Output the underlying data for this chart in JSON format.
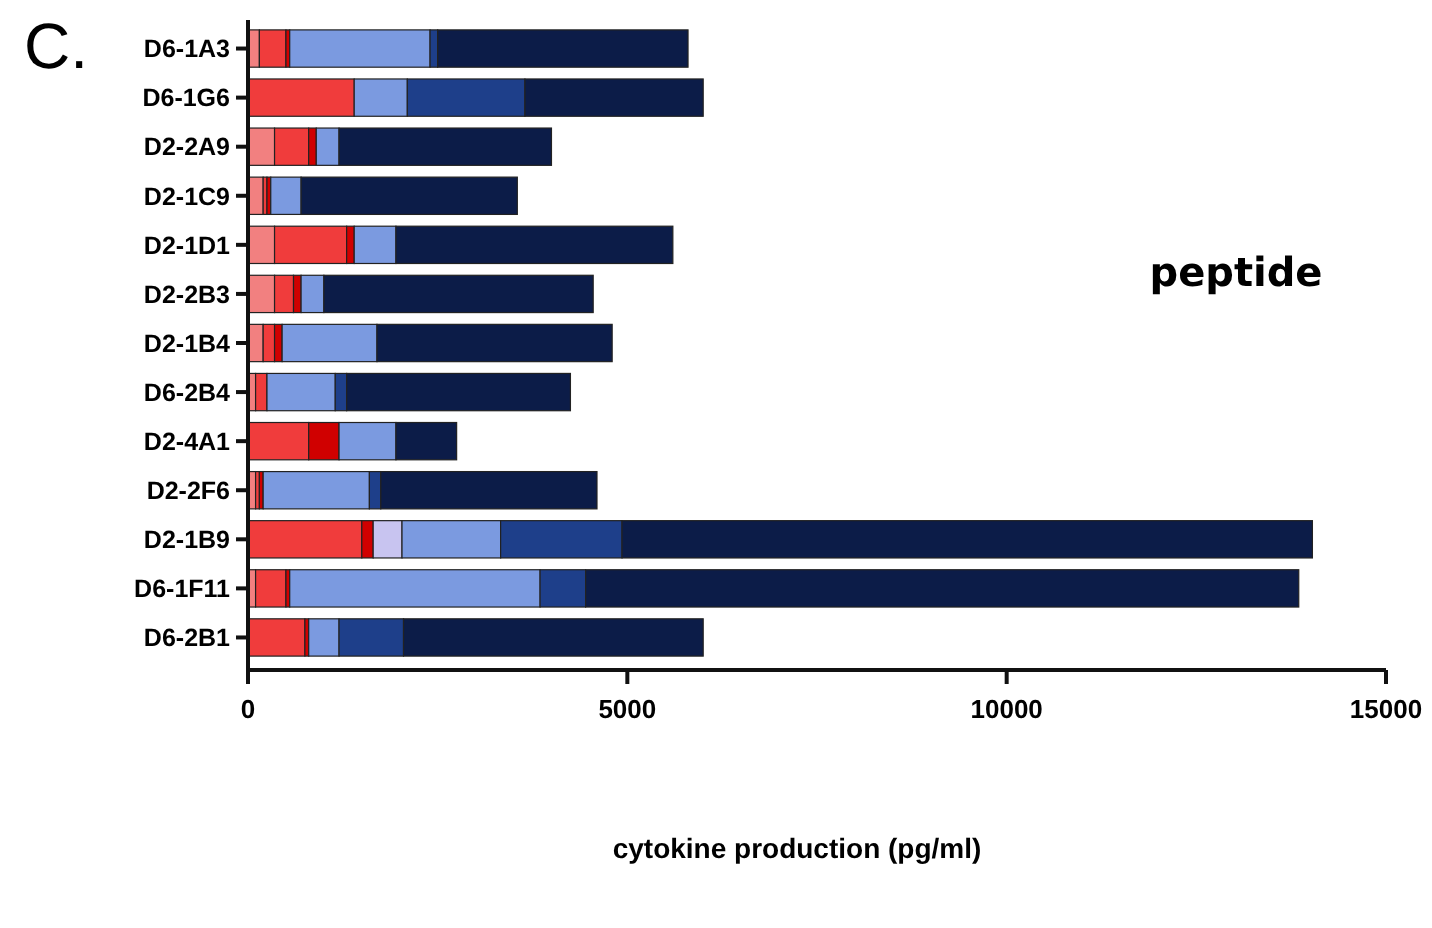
{
  "chart_data": {
    "type": "bar",
    "orientation": "horizontal",
    "stacked": true,
    "categories": [
      "D6-1A3",
      "D6-1G6",
      "D2-2A9",
      "D2-1C9",
      "D2-1D1",
      "D2-2B3",
      "D2-1B4",
      "D6-2B4",
      "D2-4A1",
      "D2-2F6",
      "D2-1B9",
      "D6-1F11",
      "D6-2B1"
    ],
    "series": [
      {
        "color": "#f28080",
        "values": [
          150,
          0,
          350,
          200,
          350,
          350,
          200,
          100,
          0,
          100,
          0,
          100,
          0
        ]
      },
      {
        "color": "#f03c3c",
        "values": [
          350,
          1400,
          450,
          50,
          950,
          250,
          150,
          150,
          800,
          50,
          1500,
          400,
          750
        ]
      },
      {
        "color": "#d00000",
        "values": [
          50,
          0,
          100,
          50,
          100,
          100,
          100,
          0,
          400,
          50,
          150,
          50,
          50
        ]
      },
      {
        "color": "#c8c4f0",
        "values": [
          0,
          0,
          0,
          0,
          0,
          0,
          0,
          0,
          0,
          0,
          380,
          0,
          0
        ]
      },
      {
        "color": "#7b9ae0",
        "values": [
          1850,
          700,
          300,
          400,
          550,
          300,
          1250,
          900,
          750,
          1400,
          1300,
          3300,
          400
        ]
      },
      {
        "color": "#1e3f8a",
        "values": [
          100,
          1550,
          0,
          0,
          0,
          0,
          0,
          150,
          0,
          150,
          1600,
          600,
          850
        ]
      },
      {
        "color": "#0c1c48",
        "values": [
          3300,
          2350,
          2800,
          2850,
          3650,
          3550,
          3100,
          2950,
          800,
          2850,
          9100,
          9400,
          3950
        ]
      }
    ],
    "xlim": [
      0,
      15000
    ],
    "xticks": [
      0,
      5000,
      10000,
      15000
    ],
    "xlabel": "cytokine production (pg/ml)",
    "annotations": [
      "C.",
      "peptide"
    ]
  }
}
